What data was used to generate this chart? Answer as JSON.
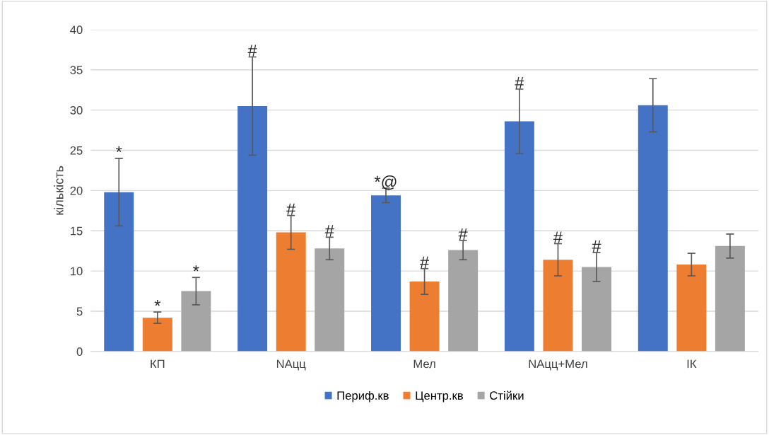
{
  "chart_data": {
    "type": "bar",
    "ylabel": "кількість",
    "categories": [
      "КП",
      "NAцц",
      "Мел",
      "NAцц+Мел",
      "ІК"
    ],
    "series": [
      {
        "name": "Периф.кв",
        "color": "#4472c4",
        "values": [
          19.8,
          30.5,
          19.4,
          28.6,
          30.6
        ],
        "errors": [
          4.2,
          6.1,
          0.9,
          4.0,
          3.3
        ],
        "value_labels": [
          "*",
          "#",
          "*@",
          "#",
          null
        ]
      },
      {
        "name": "Центр.кв",
        "color": "#ed7d31",
        "values": [
          4.2,
          14.8,
          8.7,
          11.4,
          10.8
        ],
        "errors": [
          0.7,
          2.1,
          1.6,
          2.0,
          1.4
        ],
        "value_labels": [
          "*",
          "#",
          "#",
          "#",
          null
        ]
      },
      {
        "name": "Стійки",
        "color": "#a5a5a5",
        "values": [
          7.5,
          12.8,
          12.6,
          10.5,
          13.1
        ],
        "errors": [
          1.7,
          1.4,
          1.2,
          1.8,
          1.5
        ],
        "value_labels": [
          "*",
          "#",
          "#",
          "#",
          null
        ]
      }
    ],
    "ylim": [
      0,
      40
    ],
    "yticks": [
      0,
      5,
      10,
      15,
      20,
      25,
      30,
      35,
      40
    ],
    "grid": "y",
    "legend": "bottom"
  }
}
